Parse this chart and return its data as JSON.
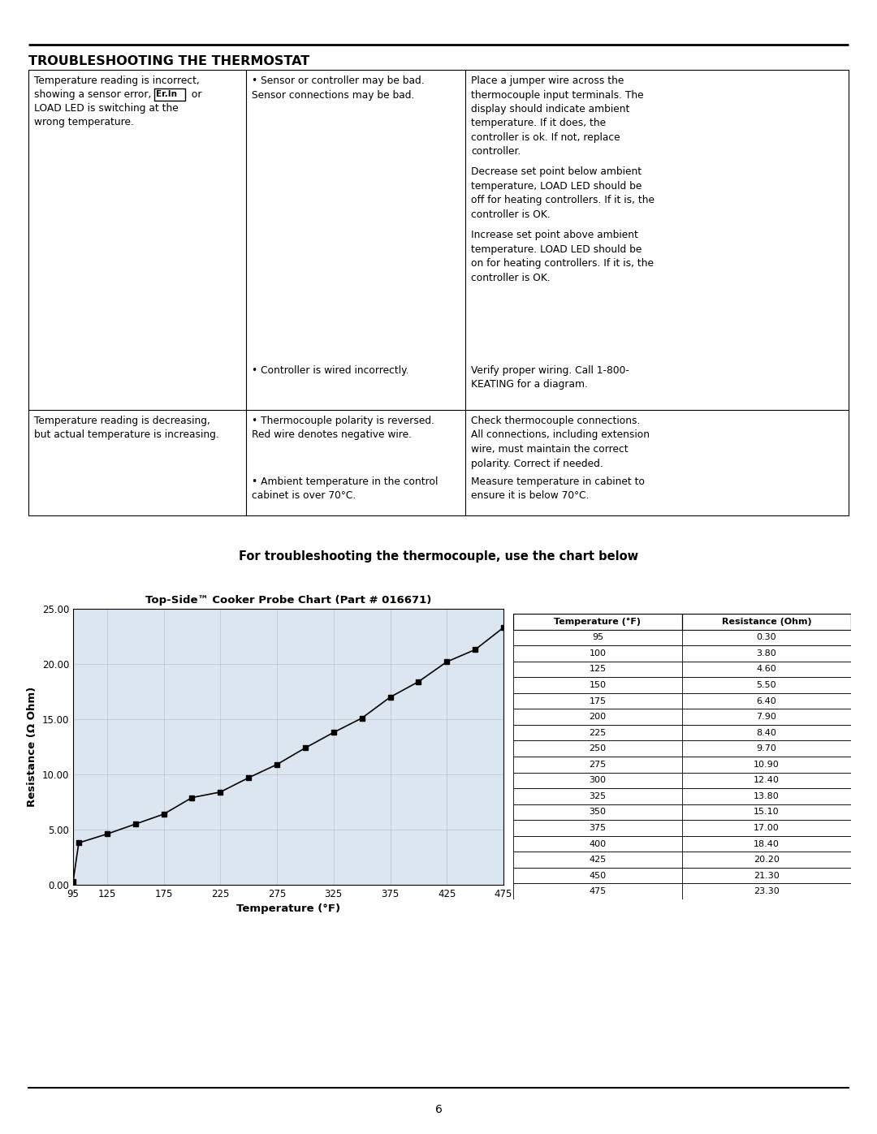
{
  "title_text": "TROUBLESHOOTING THE THERMOSTAT",
  "subtitle": "For troubleshooting the thermocouple, use the chart below",
  "chart_title": "Top-Side™ Cooker Probe Chart (Part # 016671)",
  "temperatures": [
    95,
    100,
    125,
    150,
    175,
    200,
    225,
    250,
    275,
    300,
    325,
    350,
    375,
    400,
    425,
    450,
    475
  ],
  "resistances": [
    0.3,
    3.8,
    4.6,
    5.5,
    6.4,
    7.9,
    8.4,
    9.7,
    10.9,
    12.4,
    13.8,
    15.1,
    17.0,
    18.4,
    20.2,
    21.3,
    23.3
  ],
  "xlabel": "Temperature (°F)",
  "ylabel": "Resistance (Ω Ohm)",
  "xlim": [
    95,
    475
  ],
  "ylim": [
    0,
    25
  ],
  "xticks": [
    95,
    125,
    175,
    225,
    275,
    325,
    375,
    425,
    475
  ],
  "yticks": [
    0.0,
    5.0,
    10.0,
    15.0,
    20.0,
    25.0
  ],
  "ytick_labels": [
    "0.00",
    "5.00",
    "10.00",
    "15.00",
    "20.00",
    "25.00"
  ],
  "table_headers": [
    "Temperature (°F)",
    "Resistance (Ohm)"
  ],
  "table_temps": [
    95,
    100,
    125,
    150,
    175,
    200,
    225,
    250,
    275,
    300,
    325,
    350,
    375,
    400,
    425,
    450,
    475
  ],
  "table_resist": [
    0.3,
    3.8,
    4.6,
    5.5,
    6.4,
    7.9,
    8.4,
    9.7,
    10.9,
    12.4,
    13.8,
    15.1,
    17.0,
    18.4,
    20.2,
    21.3,
    23.3
  ],
  "page_number": "6",
  "background_color": "#ffffff",
  "chart_bg_color": "#dce6f1",
  "grid_color": "#b0b8c8",
  "line_color": "#000000",
  "marker_color": "#000000",
  "col1_text_row1": "Temperature reading is incorrect,\nshowing a sensor error,        or\nLOAD LED is switching at the\nwrong temperature.",
  "col2_text_row1a": "• Sensor or controller may be bad.\nSensor connections may be bad.",
  "col2_text_row1b": "• Controller is wired incorrectly.",
  "col3_text_row1a": "Place a jumper wire across the\nthermocouple input terminals. The\ndisplay should indicate ambient\ntemperature. If it does, the\ncontroller is ok. If not, replace\ncontroller.",
  "col3_text_row1b": "Decrease set point below ambient\ntemperature, LOAD LED should be\noff for heating controllers. If it is, the\ncontroller is OK.",
  "col3_text_row1c": "Increase set point above ambient\ntemperature. LOAD LED should be\non for heating controllers. If it is, the\ncontroller is OK.",
  "col3_text_row1d": "Verify proper wiring. Call 1-800-\nKEATING for a diagram.",
  "col1_text_row2": "Temperature reading is decreasing,\nbut actual temperature is increasing.",
  "col2_text_row2a": "• Thermocouple polarity is reversed.\nRed wire denotes negative wire.",
  "col2_text_row2b": "• Ambient temperature in the control\ncabinet is over 70°C.",
  "col3_text_row2a": "Check thermocouple connections.\nAll connections, including extension\nwire, must maintain the correct\npolarity. Correct if needed.",
  "col3_text_row2b": "Measure temperature in cabinet to\nensure it is below 70°C."
}
